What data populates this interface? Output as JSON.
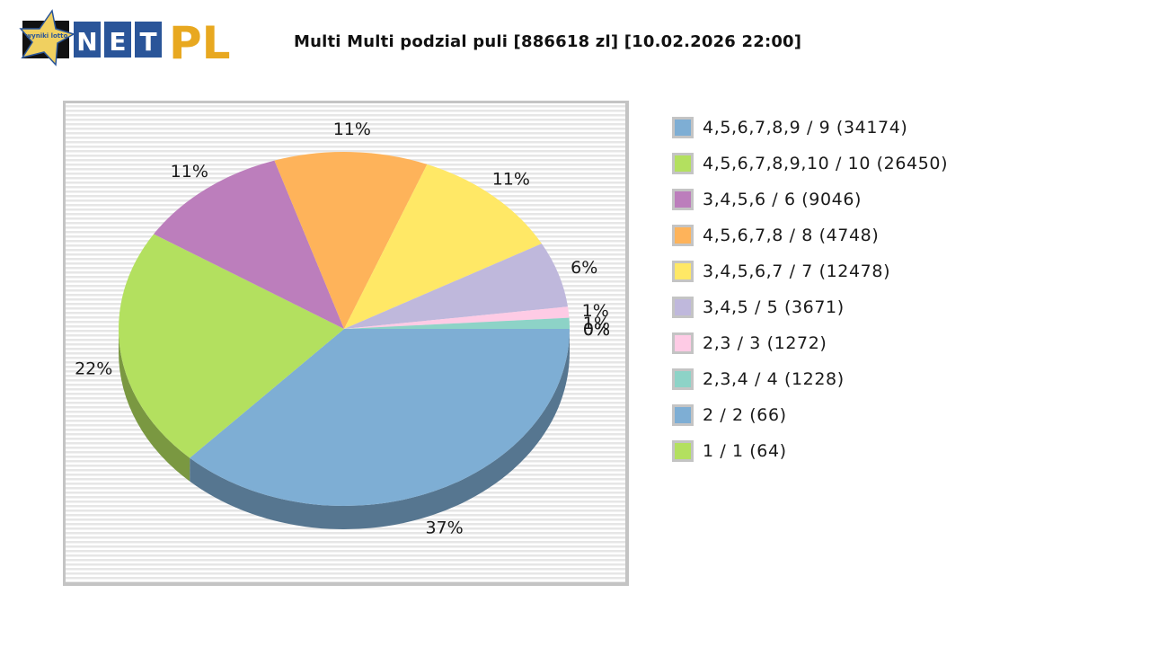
{
  "header": {
    "logo": {
      "badge_text": "wyniki lotto",
      "net_letters": [
        "N",
        "E",
        "T"
      ],
      "pl_text": "PL"
    },
    "title": "Multi Multi podzial puli [886618 zl] [10.02.2026 22:00]"
  },
  "colors": {
    "plot_border": "#c4c4c4",
    "stripe_light": "#ffffff",
    "stripe_dark": "#e6e6e6",
    "logo_blue": "#2a5599",
    "logo_gold": "#e8a820",
    "logo_star": "#f0d060"
  },
  "legend": {
    "items": [
      {
        "label": "4,5,6,7,8,9 / 9 (34174)",
        "color": "#7eaed4"
      },
      {
        "label": "4,5,6,7,8,9,10 / 10 (26450)",
        "color": "#b3e05f"
      },
      {
        "label": "3,4,5,6 / 6 (9046)",
        "color": "#bc7ebc"
      },
      {
        "label": "4,5,6,7,8 / 8 (4748)",
        "color": "#feb35a"
      },
      {
        "label": "3,4,5,6,7 / 7 (12478)",
        "color": "#ffe866"
      },
      {
        "label": "3,4,5 / 5 (3671)",
        "color": "#bfb8dc"
      },
      {
        "label": "2,3 / 3 (1272)",
        "color": "#fecbe5"
      },
      {
        "label": "2,3,4 / 4 (1228)",
        "color": "#8dd3c7"
      },
      {
        "label": "2 / 2 (66)",
        "color": "#7eaed4"
      },
      {
        "label": "1 / 1 (64)",
        "color": "#b3e05f"
      }
    ]
  },
  "chart_data": {
    "type": "pie",
    "title": "Multi Multi podzial puli [886618 zl] [10.02.2026 22:00]",
    "style": "3d",
    "categories": [
      "4,5,6,7,8,9 / 9 (34174)",
      "4,5,6,7,8,9,10 / 10 (26450)",
      "3,4,5,6 / 6 (9046)",
      "4,5,6,7,8 / 8 (4748)",
      "3,4,5,6,7 / 7 (12478)",
      "3,4,5 / 5 (3671)",
      "2,3 / 3 (1272)",
      "2,3,4 / 4 (1228)",
      "2 / 2 (66)",
      "1 / 1 (64)"
    ],
    "values": [
      37,
      22,
      11,
      11,
      11,
      6,
      1,
      1,
      0,
      0
    ],
    "labels": [
      "37%",
      "22%",
      "11%",
      "11%",
      "11%",
      "6%",
      "1%",
      "1%",
      "0%",
      "0%"
    ],
    "colors": [
      "#7eaed4",
      "#b3e05f",
      "#bc7ebc",
      "#feb35a",
      "#ffe866",
      "#bfb8dc",
      "#fecbe5",
      "#8dd3c7",
      "#7eaed4",
      "#b3e05f"
    ],
    "legend_position": "right",
    "grid": false
  }
}
